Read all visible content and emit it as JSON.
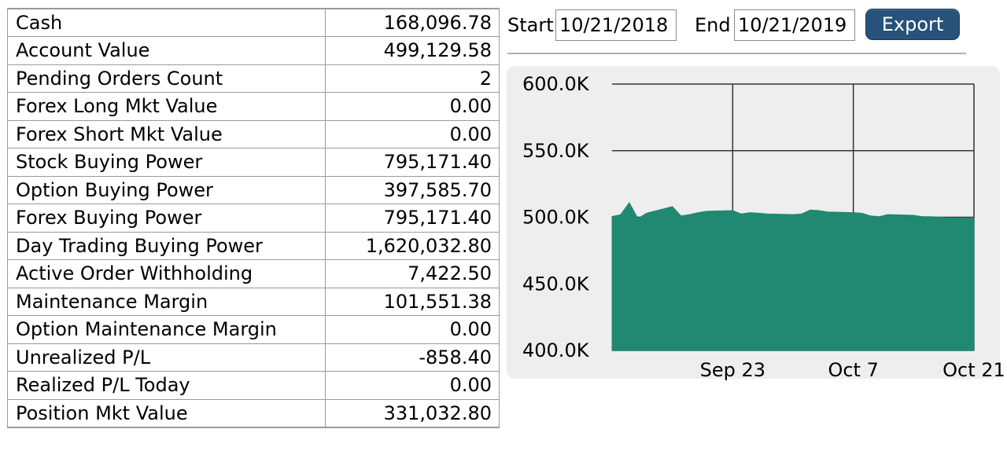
{
  "account": {
    "rows": [
      {
        "label": "Cash",
        "value": "168,096.78"
      },
      {
        "label": "Account Value",
        "value": "499,129.58"
      },
      {
        "label": "Pending Orders Count",
        "value": "2"
      },
      {
        "label": "Forex Long Mkt Value",
        "value": "0.00"
      },
      {
        "label": "Forex Short Mkt Value",
        "value": "0.00"
      },
      {
        "label": "Stock Buying Power",
        "value": "795,171.40"
      },
      {
        "label": "Option Buying Power",
        "value": "397,585.70"
      },
      {
        "label": "Forex Buying Power",
        "value": "795,171.40"
      },
      {
        "label": "Day Trading Buying Power",
        "value": "1,620,032.80"
      },
      {
        "label": "Active Order Withholding",
        "value": "7,422.50"
      },
      {
        "label": "Maintenance Margin",
        "value": "101,551.38"
      },
      {
        "label": "Option Maintenance Margin",
        "value": "0.00"
      },
      {
        "label": "Unrealized P/L",
        "value": "-858.40"
      },
      {
        "label": "Realized P/L Today",
        "value": "0.00"
      },
      {
        "label": "Position Mkt Value",
        "value": "331,032.80"
      }
    ]
  },
  "range": {
    "start_label": "Start",
    "start_value": "10/21/2018",
    "end_label": "End",
    "end_value": "10/21/2019",
    "export_label": "Export"
  },
  "colors": {
    "area_fill": "#218872",
    "export_button": "#27527a",
    "chart_background": "#eeeeee"
  },
  "chart_data": {
    "type": "area",
    "y_ticks": [
      "600.0K",
      "550.0K",
      "500.0K",
      "450.0K",
      "400.0K"
    ],
    "ylim": [
      400000,
      600000
    ],
    "x_ticks": [
      "Sep 23",
      "Oct 7",
      "Oct 21"
    ],
    "xlim": [
      "2019-09-09",
      "2019-10-21"
    ],
    "grid": true,
    "series": [
      {
        "x": [
          "2019-09-09",
          "2019-09-10",
          "2019-09-11",
          "2019-09-12",
          "2019-09-13",
          "2019-09-16",
          "2019-09-17",
          "2019-09-18",
          "2019-09-19",
          "2019-09-20",
          "2019-09-23",
          "2019-09-24",
          "2019-09-25",
          "2019-09-26",
          "2019-09-27",
          "2019-09-30",
          "2019-10-01",
          "2019-10-02",
          "2019-10-03",
          "2019-10-04",
          "2019-10-07",
          "2019-10-08",
          "2019-10-09",
          "2019-10-10",
          "2019-10-11",
          "2019-10-14",
          "2019-10-15",
          "2019-10-16",
          "2019-10-17",
          "2019-10-18",
          "2019-10-21"
        ],
        "values": [
          500500,
          502000,
          511000,
          499000,
          503000,
          508000,
          501000,
          502000,
          503500,
          504500,
          505000,
          502500,
          503500,
          503000,
          502500,
          502000,
          502500,
          505500,
          505000,
          504000,
          503500,
          503000,
          501000,
          500500,
          502000,
          501500,
          500500,
          500500,
          500000,
          499500,
          499500
        ]
      }
    ]
  }
}
